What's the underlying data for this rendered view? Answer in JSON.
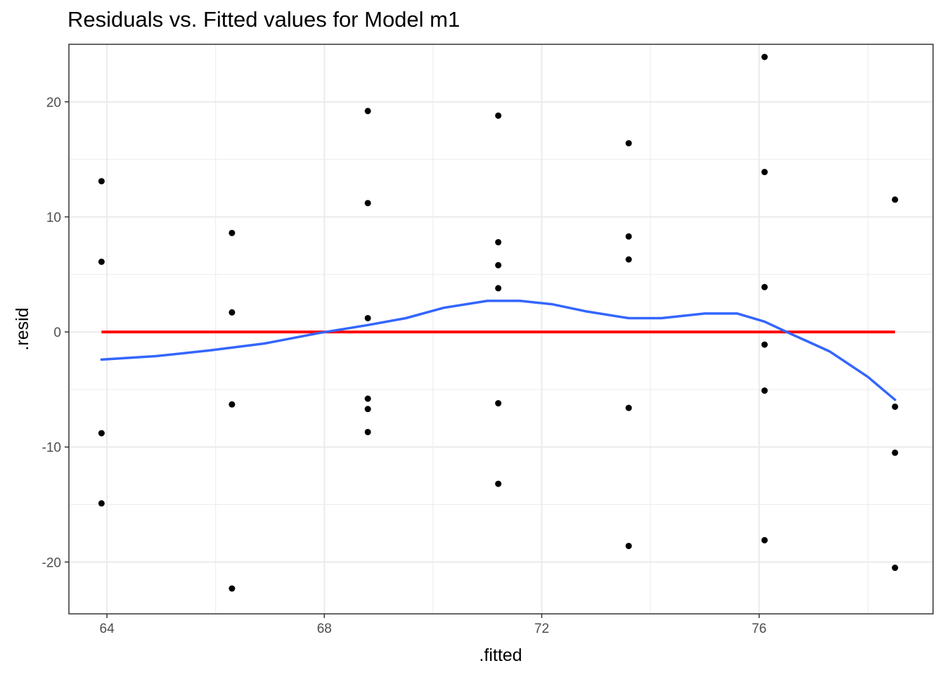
{
  "chart_data": {
    "type": "scatter",
    "title": "Residuals vs. Fitted values for Model m1",
    "xlabel": ".fitted",
    "ylabel": ".resid",
    "xlim": [
      63.3,
      79.2
    ],
    "ylim": [
      -24.5,
      25.0
    ],
    "x_ticks": [
      64,
      68,
      72,
      76
    ],
    "y_ticks": [
      -20,
      -10,
      0,
      10,
      20
    ],
    "x_minor": [
      66,
      70,
      74,
      78
    ],
    "y_minor": [
      -15,
      -5,
      5,
      15
    ],
    "grid": true,
    "colors": {
      "points": "#000000",
      "smooth": "#3366ff",
      "reference_line": "#ff0000",
      "grid": "#ebebeb",
      "panel_border": "#333333"
    },
    "points": [
      {
        "x": 63.9,
        "y": 13.1
      },
      {
        "x": 63.9,
        "y": 6.1
      },
      {
        "x": 63.9,
        "y": -8.8
      },
      {
        "x": 63.9,
        "y": -14.9
      },
      {
        "x": 66.3,
        "y": 8.6
      },
      {
        "x": 66.3,
        "y": 1.7
      },
      {
        "x": 66.3,
        "y": -6.3
      },
      {
        "x": 66.3,
        "y": -22.3
      },
      {
        "x": 68.8,
        "y": 19.2
      },
      {
        "x": 68.8,
        "y": 11.2
      },
      {
        "x": 68.8,
        "y": 1.2
      },
      {
        "x": 68.8,
        "y": -5.8
      },
      {
        "x": 68.8,
        "y": -6.7
      },
      {
        "x": 68.8,
        "y": -8.7
      },
      {
        "x": 71.2,
        "y": 18.8
      },
      {
        "x": 71.2,
        "y": 7.8
      },
      {
        "x": 71.2,
        "y": 5.8
      },
      {
        "x": 71.2,
        "y": 3.8
      },
      {
        "x": 71.2,
        "y": -6.2
      },
      {
        "x": 71.2,
        "y": -13.2
      },
      {
        "x": 73.6,
        "y": 16.4
      },
      {
        "x": 73.6,
        "y": 8.3
      },
      {
        "x": 73.6,
        "y": 6.3
      },
      {
        "x": 73.6,
        "y": -6.6
      },
      {
        "x": 73.6,
        "y": -18.6
      },
      {
        "x": 76.1,
        "y": 23.9
      },
      {
        "x": 76.1,
        "y": 13.9
      },
      {
        "x": 76.1,
        "y": 3.9
      },
      {
        "x": 76.1,
        "y": -1.1
      },
      {
        "x": 76.1,
        "y": -5.1
      },
      {
        "x": 76.1,
        "y": -18.1
      },
      {
        "x": 78.5,
        "y": 11.5
      },
      {
        "x": 78.5,
        "y": -6.5
      },
      {
        "x": 78.5,
        "y": -10.5
      },
      {
        "x": 78.5,
        "y": -20.5
      }
    ],
    "smooth_line": [
      {
        "x": 63.9,
        "y": -2.4
      },
      {
        "x": 64.9,
        "y": -2.1
      },
      {
        "x": 65.9,
        "y": -1.6
      },
      {
        "x": 66.9,
        "y": -1.0
      },
      {
        "x": 67.9,
        "y": -0.1
      },
      {
        "x": 68.8,
        "y": 0.6
      },
      {
        "x": 69.5,
        "y": 1.2
      },
      {
        "x": 70.2,
        "y": 2.1
      },
      {
        "x": 71.0,
        "y": 2.7
      },
      {
        "x": 71.6,
        "y": 2.7
      },
      {
        "x": 72.2,
        "y": 2.4
      },
      {
        "x": 72.8,
        "y": 1.8
      },
      {
        "x": 73.6,
        "y": 1.2
      },
      {
        "x": 74.2,
        "y": 1.2
      },
      {
        "x": 75.0,
        "y": 1.6
      },
      {
        "x": 75.6,
        "y": 1.6
      },
      {
        "x": 76.1,
        "y": 0.9
      },
      {
        "x": 76.6,
        "y": -0.2
      },
      {
        "x": 77.3,
        "y": -1.7
      },
      {
        "x": 78.0,
        "y": -3.9
      },
      {
        "x": 78.5,
        "y": -5.9
      }
    ],
    "reference_line": {
      "y": 0,
      "x_start": 63.9,
      "x_end": 78.5
    }
  }
}
